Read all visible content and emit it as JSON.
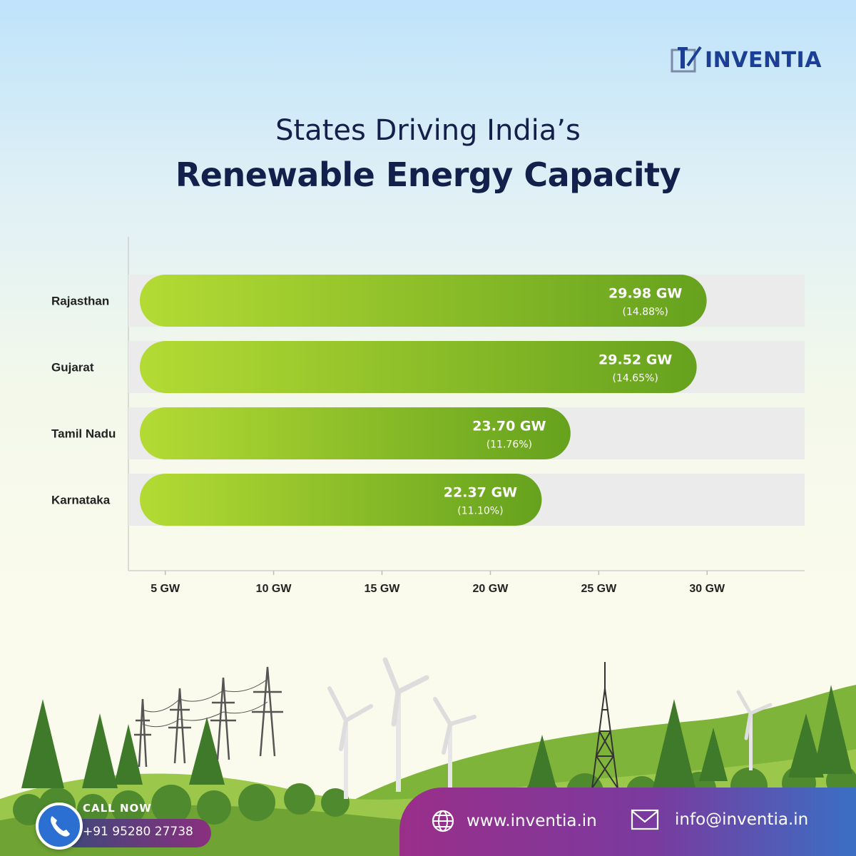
{
  "brand": {
    "name": "INVENTIA"
  },
  "heading": {
    "line1": "States Driving India’s",
    "line2": "Renewable Energy Capacity"
  },
  "chart_data": {
    "type": "bar",
    "orientation": "horizontal",
    "categories": [
      "Rajasthan",
      "Gujarat",
      "Tamil Nadu",
      "Karnataka"
    ],
    "values": [
      29.98,
      29.52,
      23.7,
      22.37
    ],
    "value_labels": [
      "29.98 GW",
      "29.52 GW",
      "23.70 GW",
      "22.37 GW"
    ],
    "percent_labels": [
      "(14.88%)",
      "(14.65%)",
      "(11.76%)",
      "(11.10%)"
    ],
    "x_ticks": [
      5,
      10,
      15,
      20,
      25,
      30
    ],
    "x_tick_labels": [
      "5 GW",
      "10 GW",
      "15 GW",
      "20 GW",
      "25 GW",
      "30 GW"
    ],
    "xlim": [
      3.3,
      34.5
    ],
    "bar_color_start": "#b4db34",
    "bar_color_end": "#66a21e",
    "track_color": "#ebebeb"
  },
  "contact": {
    "call_label": "CALL NOW",
    "phone": "+91 95280 27738",
    "website": "www.inventia.in",
    "email": "info@inventia.in"
  },
  "icons": {
    "phone": "phone-icon",
    "globe": "globe-icon",
    "mail": "mail-icon",
    "logo": "inventia-logo-icon"
  },
  "colors": {
    "title": "#13204b",
    "brand": "#1a3f95",
    "contact_gradient_start": "#9a2f8a",
    "contact_gradient_end": "#3a6fc4"
  }
}
